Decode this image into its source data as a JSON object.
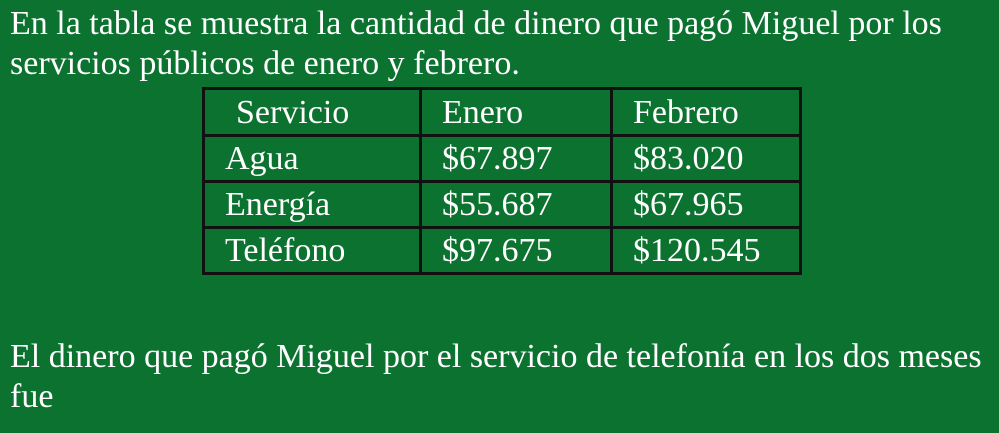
{
  "intro": "En la tabla se muestra la cantidad de dinero que pagó Miguel por los servicios públicos de enero y febrero.",
  "table": {
    "headers": [
      "Servicio",
      "Enero",
      "Febrero"
    ],
    "rows": [
      [
        "Agua",
        "$67.897",
        "$83.020"
      ],
      [
        "Energía",
        "$55.687",
        "$67.965"
      ],
      [
        "Teléfono",
        "$97.675",
        "$120.545"
      ]
    ]
  },
  "question": "El dinero que pagó Miguel por el servicio de telefonía en los dos meses fue",
  "colors": {
    "background": "#0b722f",
    "text": "#ffffff",
    "table_border": "#111111"
  }
}
